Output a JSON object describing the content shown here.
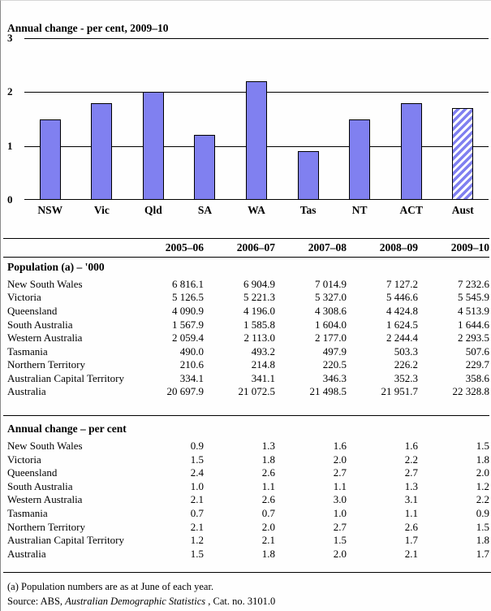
{
  "chart_data": [
    {
      "type": "bar",
      "title": "Annual change - per cent, 2009–10",
      "categories": [
        "NSW",
        "Vic",
        "Qld",
        "SA",
        "WA",
        "Tas",
        "NT",
        "ACT",
        "Aust"
      ],
      "values": [
        1.5,
        1.8,
        2.0,
        1.2,
        2.2,
        0.9,
        1.5,
        1.8,
        1.7
      ],
      "xlabel": "",
      "ylabel": "per cent",
      "ylim": [
        0,
        3
      ],
      "y_ticks": [
        3,
        2,
        1,
        0
      ],
      "grid": true,
      "legend": "none",
      "bar_color": "#8080F0",
      "bar_border_color": "#000000",
      "hatched_category": "Aust"
    },
    {
      "type": "table",
      "col_headers": [
        "2005–06",
        "2006–07",
        "2007–08",
        "2008–09",
        "2009–10"
      ],
      "sections": [
        {
          "header": "Population (a) – '000",
          "rows": [
            {
              "label": "New South Wales",
              "values": [
                "6 816.1",
                "6 904.9",
                "7 014.9",
                "7 127.2",
                "7 232.6"
              ]
            },
            {
              "label": "Victoria",
              "values": [
                "5 126.5",
                "5 221.3",
                "5 327.0",
                "5 446.6",
                "5 545.9"
              ]
            },
            {
              "label": "Queensland",
              "values": [
                "4 090.9",
                "4 196.0",
                "4 308.6",
                "4 424.8",
                "4 513.9"
              ]
            },
            {
              "label": "South Australia",
              "values": [
                "1 567.9",
                "1 585.8",
                "1 604.0",
                "1 624.5",
                "1 644.6"
              ]
            },
            {
              "label": "Western Australia",
              "values": [
                "2 059.4",
                "2 113.0",
                "2 177.0",
                "2 244.4",
                "2 293.5"
              ]
            },
            {
              "label": "Tasmania",
              "values": [
                "490.0",
                "493.2",
                "497.9",
                "503.3",
                "507.6"
              ]
            },
            {
              "label": "Northern Territory",
              "values": [
                "210.6",
                "214.8",
                "220.5",
                "226.2",
                "229.7"
              ]
            },
            {
              "label": "Australian Capital Territory",
              "values": [
                "334.1",
                "341.1",
                "346.3",
                "352.3",
                "358.6"
              ]
            },
            {
              "label": "Australia",
              "values": [
                "20 697.9",
                "21 072.5",
                "21 498.5",
                "21 951.7",
                "22 328.8"
              ]
            }
          ]
        },
        {
          "header": "Annual change – per cent",
          "rows": [
            {
              "label": "New South Wales",
              "values": [
                "0.9",
                "1.3",
                "1.6",
                "1.6",
                "1.5"
              ]
            },
            {
              "label": "Victoria",
              "values": [
                "1.5",
                "1.8",
                "2.0",
                "2.2",
                "1.8"
              ]
            },
            {
              "label": "Queensland",
              "values": [
                "2.4",
                "2.6",
                "2.7",
                "2.7",
                "2.0"
              ]
            },
            {
              "label": "South Australia",
              "values": [
                "1.0",
                "1.1",
                "1.1",
                "1.3",
                "1.2"
              ]
            },
            {
              "label": "Western Australia",
              "values": [
                "2.1",
                "2.6",
                "3.0",
                "3.1",
                "2.2"
              ]
            },
            {
              "label": "Tasmania",
              "values": [
                "0.7",
                "0.7",
                "1.0",
                "1.1",
                "0.9"
              ]
            },
            {
              "label": "Northern Territory",
              "values": [
                "2.1",
                "2.0",
                "2.7",
                "2.6",
                "1.5"
              ]
            },
            {
              "label": "Australian Capital Territory",
              "values": [
                "1.2",
                "2.1",
                "1.5",
                "1.7",
                "1.8"
              ]
            },
            {
              "label": "Australia",
              "values": [
                "1.5",
                "1.8",
                "2.0",
                "2.1",
                "1.7"
              ]
            }
          ]
        }
      ]
    }
  ],
  "footnotes": {
    "note": "(a) Population numbers are as at June of each year.",
    "source_prefix": "Source: ABS, ",
    "source_title": "Australian Demographic Statistics",
    "source_suffix": " , Cat. no. 3101.0"
  }
}
